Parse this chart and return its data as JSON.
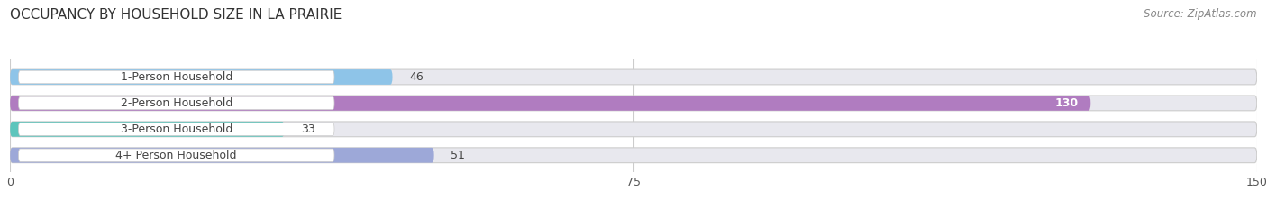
{
  "title": "OCCUPANCY BY HOUSEHOLD SIZE IN LA PRAIRIE",
  "source": "Source: ZipAtlas.com",
  "categories": [
    "1-Person Household",
    "2-Person Household",
    "3-Person Household",
    "4+ Person Household"
  ],
  "values": [
    46,
    130,
    33,
    51
  ],
  "bar_colors": [
    "#8ec4e8",
    "#b07cc0",
    "#5dc5bc",
    "#9da8d8"
  ],
  "bar_label_colors": [
    "#444444",
    "#ffffff",
    "#444444",
    "#444444"
  ],
  "xlim": [
    0,
    150
  ],
  "xticks": [
    0,
    75,
    150
  ],
  "background_color": "#ffffff",
  "bar_bg_color": "#e8e8ee",
  "title_fontsize": 11,
  "source_fontsize": 8.5,
  "label_fontsize": 9,
  "value_fontsize": 9
}
